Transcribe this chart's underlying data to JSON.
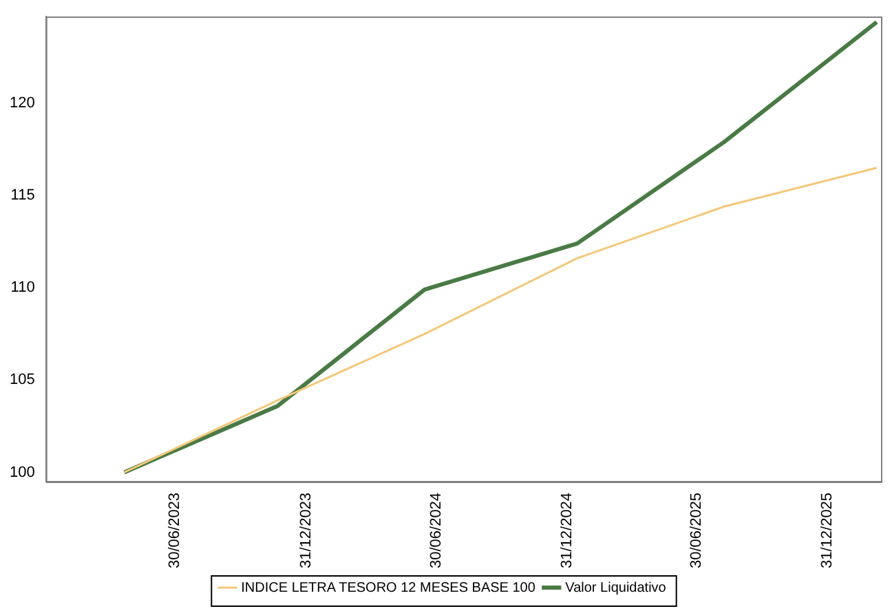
{
  "chart_data": {
    "type": "line",
    "series": [
      {
        "name": "INDICE LETRA TESORO 12 MESES BASE 100",
        "color": "#f5c77a",
        "x": [
          "2023-04-20",
          "2023-11-21",
          "2024-06-14",
          "2025-01-14",
          "2025-08-08",
          "2026-03-10"
        ],
        "values": [
          100.0,
          103.9,
          107.5,
          111.6,
          114.4,
          116.5
        ]
      },
      {
        "name": "Valor Liquidativo",
        "color": "#4a7a45",
        "x": [
          "2023-04-20",
          "2023-11-21",
          "2024-06-14",
          "2025-01-14",
          "2025-08-08",
          "2026-03-10"
        ],
        "values": [
          100.0,
          103.6,
          109.9,
          112.4,
          117.9,
          124.4
        ]
      }
    ],
    "xlim": [
      "2022-12-31",
      "2026-03-16"
    ],
    "xticks": [
      {
        "value": "2023-06-30",
        "label": "30/06/2023"
      },
      {
        "value": "2023-12-31",
        "label": "31/12/2023"
      },
      {
        "value": "2024-06-30",
        "label": "30/06/2024"
      },
      {
        "value": "2024-12-31",
        "label": "31/12/2024"
      },
      {
        "value": "2025-06-30",
        "label": "30/06/2025"
      },
      {
        "value": "2025-12-31",
        "label": "31/12/2025"
      }
    ],
    "ylim": [
      99.5,
      124.7
    ],
    "yticks": [
      100,
      105,
      110,
      115,
      120
    ],
    "grid": false,
    "legend": "bottom",
    "marker": "none",
    "line_style": "solid"
  }
}
